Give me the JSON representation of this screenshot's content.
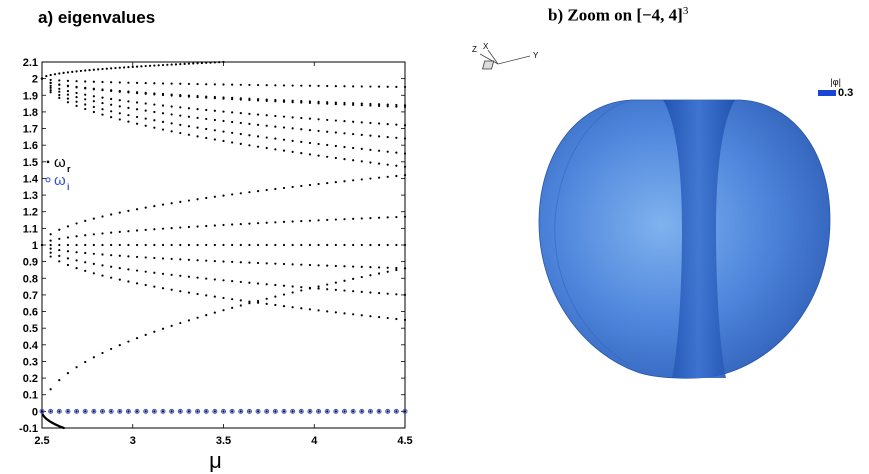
{
  "panel_a": {
    "title": "a) eigenvalues"
  },
  "panel_b": {
    "title_prefix": "b) Zoom on ",
    "title_interval": "[−4, 4]",
    "title_power": "3",
    "axes_labels": [
      "Z",
      "X",
      "Y"
    ],
    "legend_label": "|φ|",
    "legend_value": "0.3",
    "surface_color": "#4a7fd6"
  },
  "chart_data": {
    "type": "scatter",
    "title": "a) eigenvalues",
    "xlabel": "μ",
    "ylabel": "",
    "xlim": [
      2.5,
      4.5
    ],
    "ylim": [
      -0.1,
      2.1
    ],
    "xticks": [
      "2.5",
      "3",
      "3.5",
      "4",
      "4.5"
    ],
    "yticks": [
      "-0.1",
      "0",
      "0.1",
      "0.2",
      "0.3",
      "0.4",
      "0.5",
      "0.6",
      "0.7",
      "0.8",
      "0.9",
      "1",
      "1.1",
      "1.2",
      "1.3",
      "1.4",
      "1.5",
      "1.6",
      "1.7",
      "1.8",
      "1.9",
      "2",
      "2.1"
    ],
    "legend": {
      "placement": "left-middle",
      "entries": [
        {
          "symbol": "·",
          "label": "ω",
          "sub": "r",
          "color": "#000000"
        },
        {
          "symbol": "∘",
          "label": "ω",
          "sub": "i",
          "color": "#3a4fd8"
        }
      ]
    },
    "series": [
      {
        "name": "ω_r",
        "color": "#000000",
        "branches": [
          {
            "x": [
              2.5,
              3.5
            ],
            "y": [
              2.0,
              2.1
            ]
          },
          {
            "x": [
              2.5,
              4.5
            ],
            "y": [
              2.0,
              1.95
            ]
          },
          {
            "x": [
              2.5,
              4.5
            ],
            "y": [
              2.0,
              1.84
            ]
          },
          {
            "x": [
              2.5,
              4.5
            ],
            "y": [
              2.0,
              1.83
            ]
          },
          {
            "x": [
              2.5,
              4.5
            ],
            "y": [
              2.0,
              1.72
            ]
          },
          {
            "x": [
              2.5,
              4.5
            ],
            "y": [
              2.0,
              1.64
            ]
          },
          {
            "x": [
              2.5,
              4.5
            ],
            "y": [
              2.0,
              1.55
            ]
          },
          {
            "x": [
              2.5,
              4.5
            ],
            "y": [
              2.0,
              1.47
            ]
          },
          {
            "x": [
              2.5,
              4.5
            ],
            "y": [
              1.0,
              1.42
            ]
          },
          {
            "x": [
              2.5,
              4.5
            ],
            "y": [
              1.0,
              1.17
            ]
          },
          {
            "x": [
              2.5,
              4.5
            ],
            "y": [
              1.0,
              1.0
            ]
          },
          {
            "x": [
              2.5,
              4.5
            ],
            "y": [
              1.0,
              0.86
            ]
          },
          {
            "x": [
              2.5,
              4.5
            ],
            "y": [
              1.0,
              0.7
            ]
          },
          {
            "x": [
              2.5,
              4.5
            ],
            "y": [
              1.0,
              0.55
            ]
          },
          {
            "x": [
              2.5,
              4.5
            ],
            "y": [
              0.0,
              0.86
            ]
          },
          {
            "x": [
              2.5,
              4.5
            ],
            "y": [
              0.0,
              0.0
            ]
          },
          {
            "x": [
              2.5,
              2.62
            ],
            "y": [
              0.0,
              -0.1
            ]
          }
        ]
      },
      {
        "name": "ω_i",
        "color": "#3a4fd8",
        "branches": [
          {
            "x": [
              2.5,
              4.5
            ],
            "y": [
              0.0,
              0.0
            ]
          }
        ]
      }
    ],
    "grid": false
  }
}
